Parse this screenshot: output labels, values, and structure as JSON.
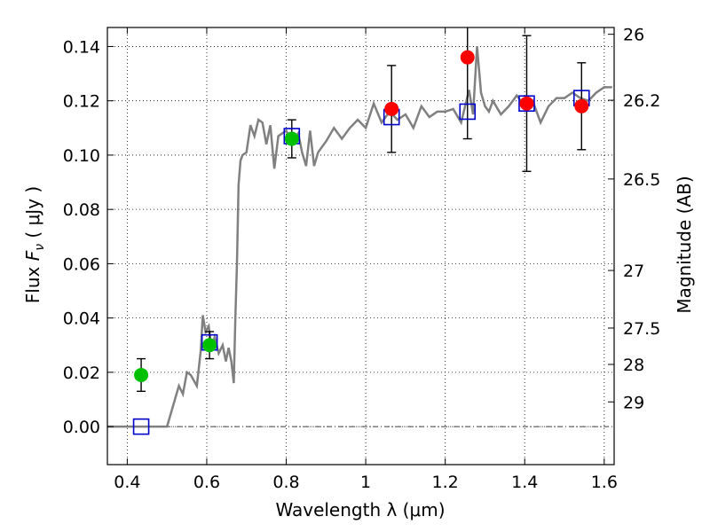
{
  "chart_data": {
    "type": "scatter",
    "xlabel": "Wavelength  λ (μm)",
    "ylabel_prefix": "Flux  ",
    "ylabel_symbol": "F",
    "ylabel_subscript": "ν",
    "ylabel_suffix": "  ( μJy )",
    "ylabel_right": "Magnitude (AB)",
    "xlim": [
      0.35,
      1.625
    ],
    "ylim": [
      -0.014,
      0.147
    ],
    "grid": true,
    "x_ticks": [
      {
        "v": 0.4,
        "label": "0.4"
      },
      {
        "v": 0.6,
        "label": "0.6"
      },
      {
        "v": 0.8,
        "label": "0.8"
      },
      {
        "v": 1.0,
        "label": "1"
      },
      {
        "v": 1.2,
        "label": "1.2"
      },
      {
        "v": 1.4,
        "label": "1.4"
      },
      {
        "v": 1.6,
        "label": "1.6"
      }
    ],
    "y_ticks": [
      {
        "v": 0.0,
        "label": "0.00"
      },
      {
        "v": 0.02,
        "label": "0.02"
      },
      {
        "v": 0.04,
        "label": "0.04"
      },
      {
        "v": 0.06,
        "label": "0.06"
      },
      {
        "v": 0.08,
        "label": "0.08"
      },
      {
        "v": 0.1,
        "label": "0.10"
      },
      {
        "v": 0.12,
        "label": "0.12"
      },
      {
        "v": 0.14,
        "label": "0.14"
      }
    ],
    "right_ticks": [
      {
        "flux": 0.1445,
        "label": "26"
      },
      {
        "flux": 0.1202,
        "label": "26.2"
      },
      {
        "flux": 0.0912,
        "label": "26.5"
      },
      {
        "flux": 0.0575,
        "label": "27"
      },
      {
        "flux": 0.0363,
        "label": "27.5"
      },
      {
        "flux": 0.0229,
        "label": "28"
      },
      {
        "flux": 0.0091,
        "label": "29"
      }
    ],
    "colors": {
      "model_line": "#808080",
      "green_points": "#00c000",
      "red_points": "#ff0000",
      "model_boxes": "#0000cc",
      "error_bars": "#000000"
    },
    "model_spectrum": {
      "x": [
        0.35,
        0.5,
        0.52,
        0.53,
        0.54,
        0.55,
        0.56,
        0.575,
        0.585,
        0.59,
        0.597,
        0.605,
        0.612,
        0.62,
        0.63,
        0.64,
        0.648,
        0.655,
        0.662,
        0.668,
        0.672,
        0.676,
        0.68,
        0.685,
        0.69,
        0.7,
        0.71,
        0.72,
        0.73,
        0.74,
        0.75,
        0.76,
        0.77,
        0.78,
        0.79,
        0.8,
        0.81,
        0.82,
        0.83,
        0.84,
        0.85,
        0.86,
        0.87,
        0.88,
        0.89,
        0.9,
        0.92,
        0.94,
        0.96,
        0.98,
        1.0,
        1.02,
        1.04,
        1.06,
        1.08,
        1.1,
        1.12,
        1.14,
        1.16,
        1.18,
        1.2,
        1.22,
        1.24,
        1.26,
        1.27,
        1.28,
        1.29,
        1.3,
        1.31,
        1.32,
        1.34,
        1.36,
        1.38,
        1.4,
        1.42,
        1.44,
        1.46,
        1.48,
        1.5,
        1.52,
        1.54,
        1.56,
        1.58,
        1.6,
        1.62
      ],
      "y": [
        0.0,
        0.0,
        0.01,
        0.015,
        0.012,
        0.02,
        0.019,
        0.015,
        0.028,
        0.041,
        0.035,
        0.037,
        0.029,
        0.033,
        0.027,
        0.03,
        0.024,
        0.029,
        0.024,
        0.016,
        0.04,
        0.06,
        0.089,
        0.098,
        0.1,
        0.101,
        0.111,
        0.107,
        0.113,
        0.112,
        0.104,
        0.111,
        0.095,
        0.107,
        0.108,
        0.109,
        0.106,
        0.106,
        0.108,
        0.101,
        0.096,
        0.109,
        0.096,
        0.101,
        0.103,
        0.105,
        0.11,
        0.106,
        0.11,
        0.113,
        0.11,
        0.119,
        0.112,
        0.116,
        0.113,
        0.115,
        0.11,
        0.118,
        0.114,
        0.116,
        0.116,
        0.117,
        0.112,
        0.124,
        0.115,
        0.14,
        0.123,
        0.118,
        0.116,
        0.12,
        0.115,
        0.118,
        0.122,
        0.118,
        0.12,
        0.112,
        0.118,
        0.121,
        0.121,
        0.123,
        0.121,
        0.12,
        0.123,
        0.125,
        0.125
      ]
    },
    "series": [
      {
        "color": "#00c000",
        "points": [
          {
            "x": 0.435,
            "y": 0.019,
            "err": 0.006
          },
          {
            "x": 0.607,
            "y": 0.03,
            "err": 0.005
          },
          {
            "x": 0.814,
            "y": 0.106,
            "err": 0.007
          }
        ]
      },
      {
        "color": "#ff0000",
        "points": [
          {
            "x": 1.065,
            "y": 0.117,
            "err": 0.016
          },
          {
            "x": 1.256,
            "y": 0.136,
            "err": 0.03
          },
          {
            "x": 1.405,
            "y": 0.119,
            "err": 0.025
          },
          {
            "x": 1.543,
            "y": 0.118,
            "err": 0.016
          }
        ]
      },
      {
        "color": "#0000cc",
        "marker": "open-square",
        "points": [
          {
            "x": 0.435,
            "y": 0.0
          },
          {
            "x": 0.607,
            "y": 0.031
          },
          {
            "x": 0.814,
            "y": 0.107
          },
          {
            "x": 1.065,
            "y": 0.114
          },
          {
            "x": 1.256,
            "y": 0.116
          },
          {
            "x": 1.405,
            "y": 0.119
          },
          {
            "x": 1.543,
            "y": 0.121
          }
        ]
      }
    ]
  }
}
